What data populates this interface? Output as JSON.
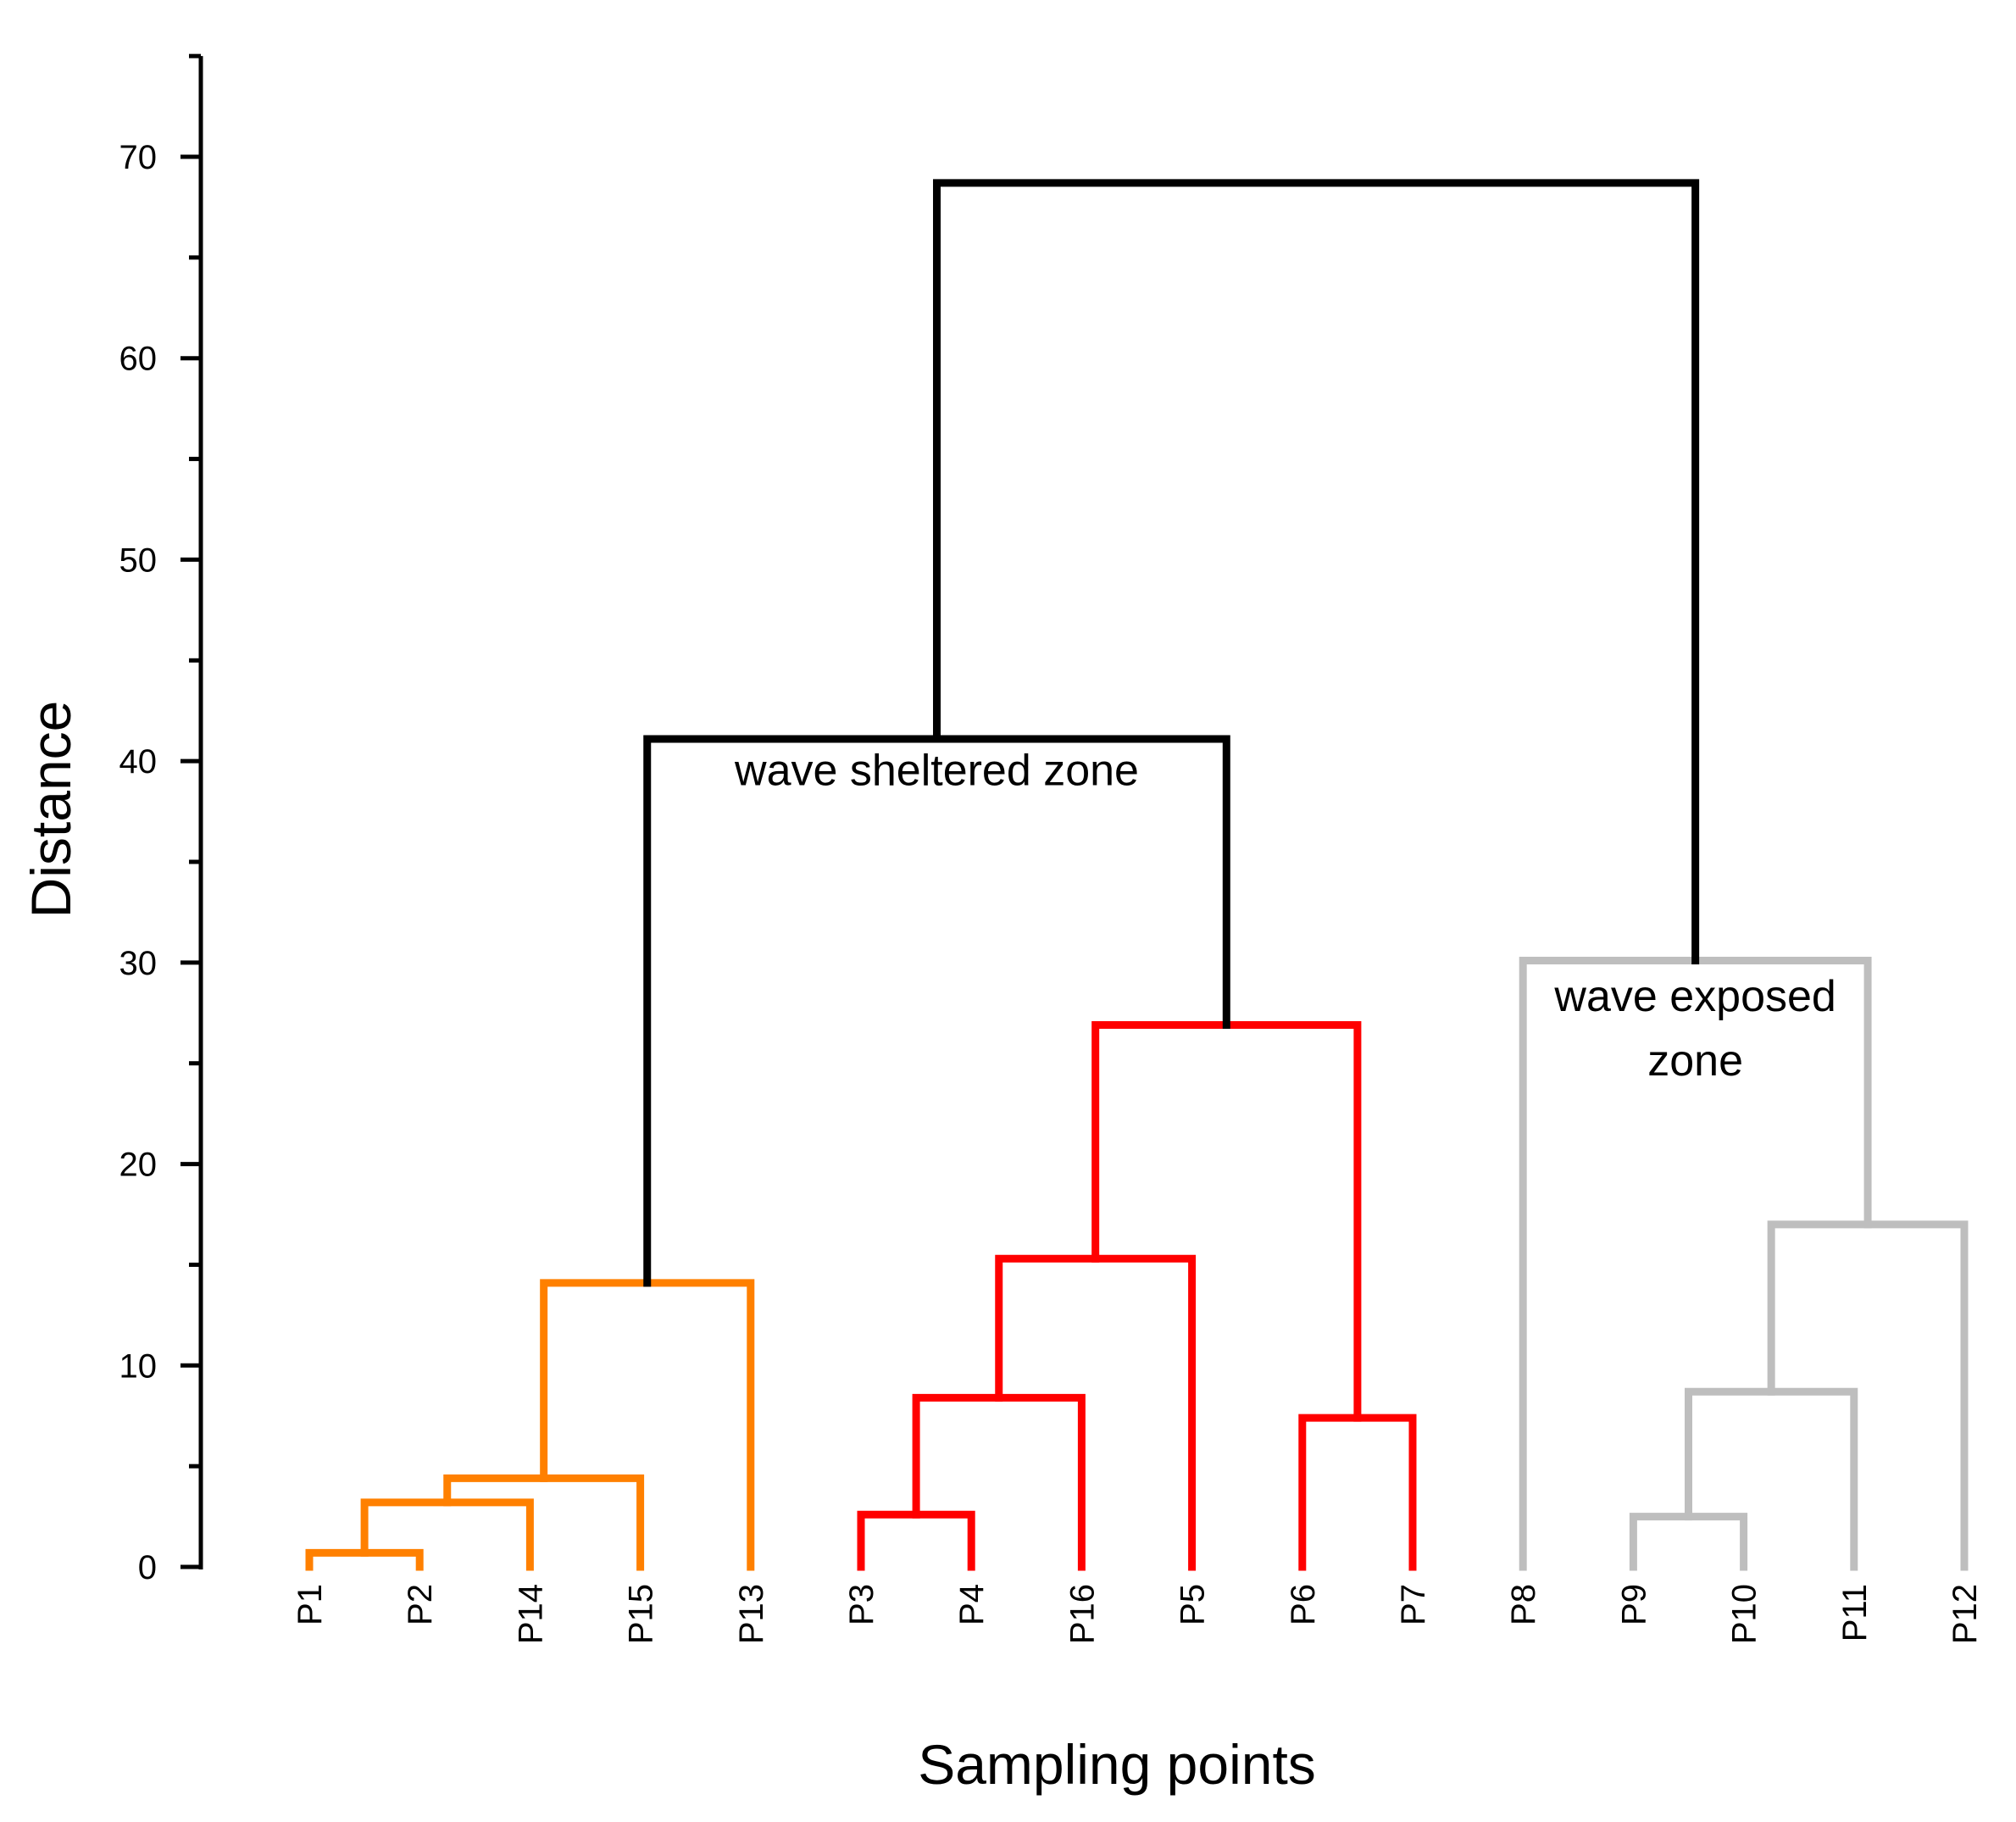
{
  "chart_data": {
    "type": "dendrogram",
    "xlabel": "Sampling points",
    "ylabel": "Distance",
    "ylim": [
      0,
      75
    ],
    "yticks": [
      0,
      10,
      20,
      30,
      40,
      50,
      60,
      70
    ],
    "leaf_order": [
      "P1",
      "P2",
      "P14",
      "P15",
      "P13",
      "P3",
      "P4",
      "P16",
      "P5",
      "P6",
      "P7",
      "P8",
      "P9",
      "P10",
      "P11",
      "P12"
    ],
    "colors": {
      "orange": "#FF8000",
      "red": "#FF0000",
      "gray": "#BEBEBE",
      "black": "#000000"
    },
    "merges": [
      {
        "left": "P1",
        "right": "P2",
        "height": 0.7,
        "color": "orange"
      },
      {
        "left": "m0",
        "right": "P14",
        "height": 3.2,
        "color": "orange"
      },
      {
        "left": "m1",
        "right": "P15",
        "height": 4.4,
        "color": "orange"
      },
      {
        "left": "m2",
        "right": "P13",
        "height": 14.1,
        "color": "orange"
      },
      {
        "left": "P3",
        "right": "P4",
        "height": 2.6,
        "color": "red"
      },
      {
        "left": "m4",
        "right": "P16",
        "height": 8.4,
        "color": "red"
      },
      {
        "left": "m5",
        "right": "P5",
        "height": 15.3,
        "color": "red"
      },
      {
        "left": "P6",
        "right": "P7",
        "height": 7.4,
        "color": "red"
      },
      {
        "left": "m6",
        "right": "m7",
        "height": 26.9,
        "color": "red"
      },
      {
        "left": "P9",
        "right": "P10",
        "height": 2.5,
        "color": "gray"
      },
      {
        "left": "m9",
        "right": "P11",
        "height": 8.7,
        "color": "gray"
      },
      {
        "left": "m10",
        "right": "P12",
        "height": 17.0,
        "color": "gray"
      },
      {
        "left": "P8",
        "right": "m11",
        "height": 30.1,
        "color": "gray"
      },
      {
        "left": "m3",
        "right": "m8",
        "height": 41.1,
        "color": "black"
      },
      {
        "left": "m13",
        "right": "m12",
        "height": 68.7,
        "color": "black"
      }
    ],
    "annotations": [
      {
        "lines": [
          "wave sheltered zone"
        ],
        "merge": "m13",
        "y_top": 38.8
      },
      {
        "lines": [
          "wave exposed",
          "zone"
        ],
        "merge": "m12",
        "y_top": 27.6
      }
    ]
  }
}
